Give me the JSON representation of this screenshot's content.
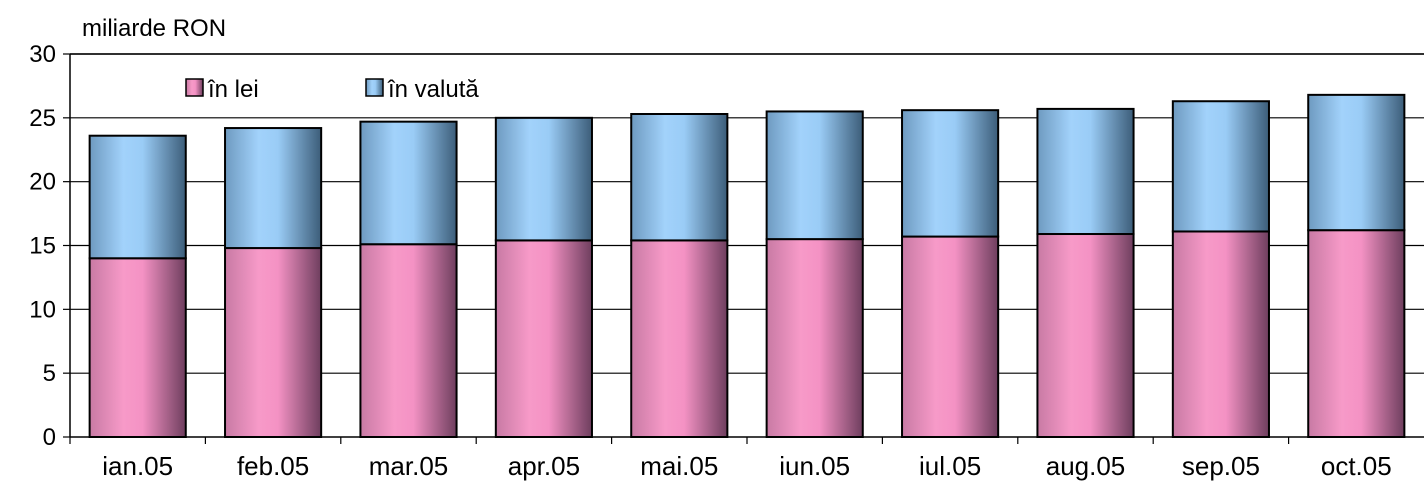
{
  "chart_data": {
    "type": "bar",
    "stacked": true,
    "ylabel": "miliarde RON",
    "ylim": [
      0,
      30
    ],
    "yticks": [
      0,
      5,
      10,
      15,
      20,
      25,
      30
    ],
    "grid": true,
    "legend_position": "top-left",
    "categories": [
      "ian.05",
      "feb.05",
      "mar.05",
      "apr.05",
      "mai.05",
      "iun.05",
      "iul.05",
      "aug.05",
      "sep.05",
      "oct.05"
    ],
    "series": [
      {
        "name": "în lei",
        "color": "#f48cc0",
        "values": [
          14.0,
          14.8,
          15.1,
          15.4,
          15.4,
          15.5,
          15.7,
          15.9,
          16.1,
          16.2
        ]
      },
      {
        "name": "în valută",
        "color": "#93c6ee",
        "values": [
          9.6,
          9.4,
          9.6,
          9.6,
          9.9,
          10.0,
          9.9,
          9.8,
          10.2,
          10.6
        ]
      }
    ]
  }
}
